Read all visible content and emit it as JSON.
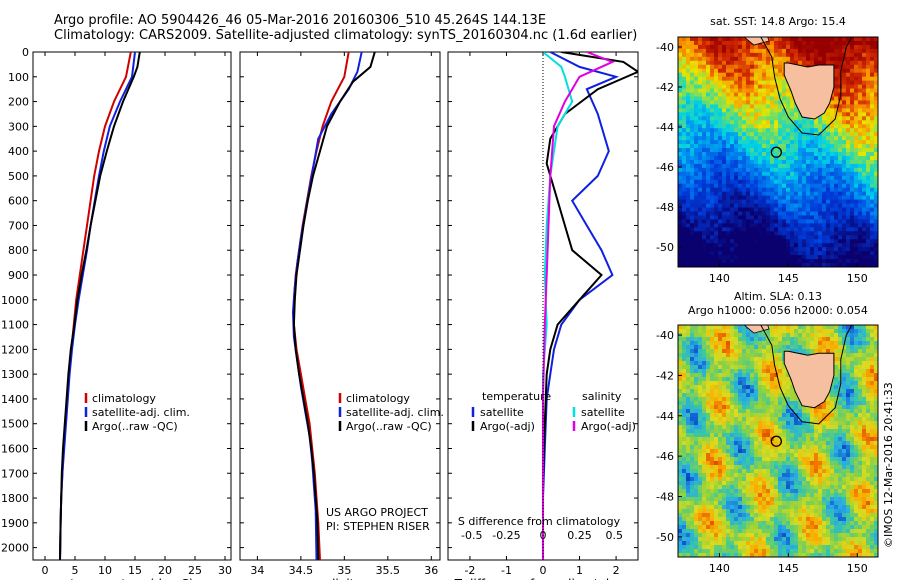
{
  "header": {
    "line1": "Argo profile: AO 5904426_46 05-Mar-2016 20160306_510 45.264S 144.13E",
    "line2": "Climatology: CARS2009. Satellite-adjusted climatology: synTS_20160304.nc (1.6d earlier)"
  },
  "colors": {
    "climatology": "#d00000",
    "satellite": "#1020e0",
    "argo": "#000000",
    "cyan": "#00e0e0",
    "magenta": "#e000e0",
    "land": "#f6c0a0"
  },
  "chart_data": [
    {
      "type": "line",
      "id": "temperature",
      "xlabel": "temperature (deg C)",
      "xlim": [
        -2,
        31
      ],
      "ylim": [
        0,
        2050
      ],
      "xticks": [
        0,
        5,
        10,
        15,
        20,
        25,
        30
      ],
      "xtick_labels": [
        "0",
        "5",
        "10",
        "15",
        "20",
        "25",
        "30"
      ],
      "yticks": [
        0,
        100,
        200,
        300,
        400,
        500,
        600,
        700,
        800,
        900,
        1000,
        1100,
        1200,
        1300,
        1400,
        1500,
        1600,
        1700,
        1800,
        1900,
        2000
      ],
      "ytick_labels": [
        "0",
        "100",
        "200",
        "300",
        "400",
        "500",
        "600",
        "700",
        "800",
        "900",
        "1000",
        "1100",
        "1200",
        "1300",
        "1400",
        "1500",
        "1600",
        "1700",
        "1800",
        "1900",
        "2000"
      ],
      "legend": [
        "climatology",
        "satellite-adj. clim.",
        "Argo(..raw -QC)"
      ],
      "series": [
        {
          "name": "climatology",
          "color": "#d00000",
          "points": [
            [
              14.3,
              0
            ],
            [
              13.5,
              100
            ],
            [
              11.5,
              200
            ],
            [
              10.0,
              300
            ],
            [
              9.0,
              400
            ],
            [
              8.2,
              500
            ],
            [
              7.6,
              600
            ],
            [
              7.0,
              700
            ],
            [
              6.4,
              800
            ],
            [
              5.8,
              900
            ],
            [
              5.2,
              1000
            ],
            [
              4.8,
              1100
            ],
            [
              4.4,
              1200
            ],
            [
              4.0,
              1300
            ],
            [
              3.7,
              1400
            ],
            [
              3.4,
              1500
            ],
            [
              3.1,
              1600
            ],
            [
              2.9,
              1700
            ],
            [
              2.7,
              1800
            ],
            [
              2.6,
              1900
            ],
            [
              2.5,
              2050
            ]
          ]
        },
        {
          "name": "satellite-adj. clim.",
          "color": "#1020e0",
          "points": [
            [
              15.0,
              0
            ],
            [
              14.5,
              100
            ],
            [
              12.5,
              200
            ],
            [
              10.8,
              300
            ],
            [
              9.8,
              400
            ],
            [
              9.0,
              500
            ],
            [
              8.3,
              600
            ],
            [
              7.6,
              700
            ],
            [
              7.0,
              800
            ],
            [
              6.3,
              900
            ],
            [
              5.6,
              1000
            ],
            [
              5.0,
              1100
            ],
            [
              4.5,
              1200
            ],
            [
              4.1,
              1300
            ],
            [
              3.8,
              1400
            ],
            [
              3.5,
              1500
            ],
            [
              3.2,
              1600
            ],
            [
              2.9,
              1700
            ],
            [
              2.7,
              1800
            ],
            [
              2.6,
              1900
            ],
            [
              2.5,
              2050
            ]
          ]
        },
        {
          "name": "Argo(..raw -QC)",
          "color": "#000000",
          "points": [
            [
              15.8,
              0
            ],
            [
              15.4,
              60
            ],
            [
              14.8,
              100
            ],
            [
              13.0,
              200
            ],
            [
              11.5,
              300
            ],
            [
              10.3,
              400
            ],
            [
              9.2,
              500
            ],
            [
              8.4,
              600
            ],
            [
              7.6,
              700
            ],
            [
              6.9,
              800
            ],
            [
              6.1,
              900
            ],
            [
              5.4,
              1000
            ],
            [
              4.9,
              1100
            ],
            [
              4.3,
              1200
            ],
            [
              3.9,
              1300
            ],
            [
              3.6,
              1400
            ],
            [
              3.3,
              1500
            ],
            [
              3.0,
              1600
            ],
            [
              2.8,
              1700
            ],
            [
              2.7,
              1800
            ],
            [
              2.6,
              1900
            ],
            [
              2.5,
              2050
            ]
          ]
        }
      ]
    },
    {
      "type": "line",
      "id": "salinity",
      "xlabel": "salinity",
      "xlim": [
        33.8,
        36.1
      ],
      "ylim": [
        0,
        2050
      ],
      "xticks": [
        34,
        34.5,
        35,
        35.5,
        36
      ],
      "xtick_labels": [
        "34",
        "34.5",
        "35",
        "35.5",
        "36"
      ],
      "legend": [
        "climatology",
        "satellite-adj. clim.",
        "Argo(..raw -QC)"
      ],
      "annotation": [
        "US ARGO PROJECT",
        "PI: STEPHEN RISER"
      ],
      "series": [
        {
          "name": "climatology",
          "color": "#d00000",
          "points": [
            [
              35.05,
              0
            ],
            [
              35.0,
              100
            ],
            [
              34.85,
              200
            ],
            [
              34.75,
              300
            ],
            [
              34.68,
              400
            ],
            [
              34.62,
              500
            ],
            [
              34.57,
              600
            ],
            [
              34.52,
              700
            ],
            [
              34.48,
              800
            ],
            [
              34.44,
              900
            ],
            [
              34.42,
              1000
            ],
            [
              34.42,
              1100
            ],
            [
              34.45,
              1200
            ],
            [
              34.5,
              1300
            ],
            [
              34.55,
              1400
            ],
            [
              34.6,
              1500
            ],
            [
              34.63,
              1600
            ],
            [
              34.66,
              1700
            ],
            [
              34.68,
              1800
            ],
            [
              34.7,
              1900
            ],
            [
              34.72,
              2050
            ]
          ]
        },
        {
          "name": "satellite-adj. clim.",
          "color": "#1020e0",
          "points": [
            [
              35.2,
              0
            ],
            [
              35.15,
              80
            ],
            [
              35.05,
              150
            ],
            [
              34.85,
              250
            ],
            [
              34.7,
              350
            ],
            [
              34.65,
              450
            ],
            [
              34.6,
              550
            ],
            [
              34.55,
              650
            ],
            [
              34.5,
              750
            ],
            [
              34.46,
              850
            ],
            [
              34.43,
              950
            ],
            [
              34.41,
              1050
            ],
            [
              34.42,
              1150
            ],
            [
              34.46,
              1250
            ],
            [
              34.5,
              1350
            ],
            [
              34.55,
              1450
            ],
            [
              34.6,
              1550
            ],
            [
              34.63,
              1650
            ],
            [
              34.65,
              1750
            ],
            [
              34.67,
              1850
            ],
            [
              34.68,
              2050
            ]
          ]
        },
        {
          "name": "Argo(..raw -QC)",
          "color": "#000000",
          "points": [
            [
              35.35,
              0
            ],
            [
              35.3,
              60
            ],
            [
              35.1,
              120
            ],
            [
              34.95,
              200
            ],
            [
              34.8,
              300
            ],
            [
              34.72,
              400
            ],
            [
              34.64,
              500
            ],
            [
              34.58,
              600
            ],
            [
              34.53,
              700
            ],
            [
              34.49,
              800
            ],
            [
              34.45,
              900
            ],
            [
              34.43,
              1000
            ],
            [
              34.42,
              1100
            ],
            [
              34.44,
              1200
            ],
            [
              34.48,
              1300
            ],
            [
              34.53,
              1400
            ],
            [
              34.58,
              1500
            ],
            [
              34.62,
              1600
            ],
            [
              34.65,
              1700
            ],
            [
              34.67,
              1800
            ],
            [
              34.69,
              1900
            ],
            [
              34.7,
              2050
            ]
          ]
        }
      ]
    },
    {
      "type": "line",
      "id": "difference",
      "xlabel": "T difference from climatology",
      "xlabel_top": "S difference from climatology",
      "xlim": [
        -2.6,
        2.6
      ],
      "ylim": [
        0,
        2050
      ],
      "xticks": [
        -2,
        -1,
        0,
        1,
        2
      ],
      "xtick_labels": [
        "-2",
        "-1",
        "0",
        "1",
        "2"
      ],
      "xticks_top_labels": [
        "-0.5",
        "-0.25",
        "0",
        "0.25",
        "0.5"
      ],
      "legend_left_title": "temperature",
      "legend_right_title": "salinity",
      "legend": [
        "satellite",
        "Argo(-adj)",
        "satellite",
        "Argo(-adj)"
      ],
      "series": [
        {
          "name": "satellite",
          "color": "#1020e0",
          "points": [
            [
              0.2,
              0
            ],
            [
              1.0,
              60
            ],
            [
              2.0,
              100
            ],
            [
              1.2,
              150
            ],
            [
              1.5,
              250
            ],
            [
              1.8,
              400
            ],
            [
              1.5,
              500
            ],
            [
              0.8,
              600
            ],
            [
              1.2,
              700
            ],
            [
              1.6,
              800
            ],
            [
              1.9,
              900
            ],
            [
              1.0,
              1000
            ],
            [
              0.5,
              1100
            ],
            [
              0.3,
              1200
            ],
            [
              0.2,
              1300
            ],
            [
              0.1,
              1400
            ],
            [
              0.05,
              1600
            ],
            [
              0.0,
              1800
            ],
            [
              0.0,
              2050
            ]
          ]
        },
        {
          "name": "Argo(-adj)",
          "color": "#000000",
          "points": [
            [
              0.5,
              0
            ],
            [
              2.2,
              40
            ],
            [
              2.6,
              80
            ],
            [
              1.5,
              150
            ],
            [
              0.6,
              250
            ],
            [
              0.2,
              350
            ],
            [
              0.1,
              450
            ],
            [
              0.3,
              550
            ],
            [
              0.6,
              700
            ],
            [
              0.8,
              800
            ],
            [
              1.6,
              900
            ],
            [
              1.0,
              1000
            ],
            [
              0.4,
              1100
            ],
            [
              0.2,
              1200
            ],
            [
              0.1,
              1300
            ],
            [
              0.05,
              1500
            ],
            [
              0.0,
              1700
            ],
            [
              0.0,
              2050
            ]
          ]
        },
        {
          "name": "satellite",
          "color": "#00e0e0",
          "points": [
            [
              0.0,
              0
            ],
            [
              0.5,
              60
            ],
            [
              0.6,
              100
            ],
            [
              0.8,
              200
            ],
            [
              0.4,
              300
            ],
            [
              0.2,
              500
            ],
            [
              0.1,
              700
            ],
            [
              0.05,
              900
            ],
            [
              0.1,
              1100
            ],
            [
              0.0,
              1300
            ],
            [
              0.0,
              1600
            ],
            [
              0.0,
              2050
            ]
          ]
        },
        {
          "name": "Argo(-adj)",
          "color": "#e000e0",
          "points": [
            [
              1.2,
              0
            ],
            [
              1.9,
              40
            ],
            [
              1.0,
              100
            ],
            [
              0.6,
              200
            ],
            [
              0.3,
              300
            ],
            [
              0.2,
              500
            ],
            [
              0.15,
              700
            ],
            [
              0.1,
              900
            ],
            [
              0.05,
              1100
            ],
            [
              0.0,
              1400
            ],
            [
              0.0,
              2050
            ]
          ]
        }
      ]
    },
    {
      "type": "heatmap",
      "id": "sst_map",
      "title": "sat. SST: 14.8 Argo: 15.4",
      "xlim": [
        137,
        151.5
      ],
      "ylim": [
        -51,
        -39.5
      ],
      "xticks": [
        140,
        145,
        150
      ],
      "xtick_labels": [
        "140",
        "145",
        "150"
      ],
      "yticks": [
        -40,
        -42,
        -44,
        -46,
        -48,
        -50
      ],
      "ytick_labels": [
        "-40",
        "-42",
        "-44",
        "-46",
        "-48",
        "-50"
      ],
      "argo_position": [
        144.13,
        -45.264
      ]
    },
    {
      "type": "heatmap",
      "id": "sla_map",
      "title_line1": "Altim. SLA: 0.13",
      "title_line2": "Argo h1000: 0.056 h2000: 0.054",
      "xlim": [
        137,
        151.5
      ],
      "ylim": [
        -51,
        -39.5
      ],
      "xticks": [
        140,
        145,
        150
      ],
      "xtick_labels": [
        "140",
        "145",
        "150"
      ],
      "yticks": [
        -40,
        -42,
        -44,
        -46,
        -48,
        -50
      ],
      "ytick_labels": [
        "-40",
        "-42",
        "-44",
        "-46",
        "-48",
        "-50"
      ],
      "argo_position": [
        144.13,
        -45.264
      ]
    }
  ],
  "credit": "©IMOS 12-Mar-2016 20:41:33"
}
